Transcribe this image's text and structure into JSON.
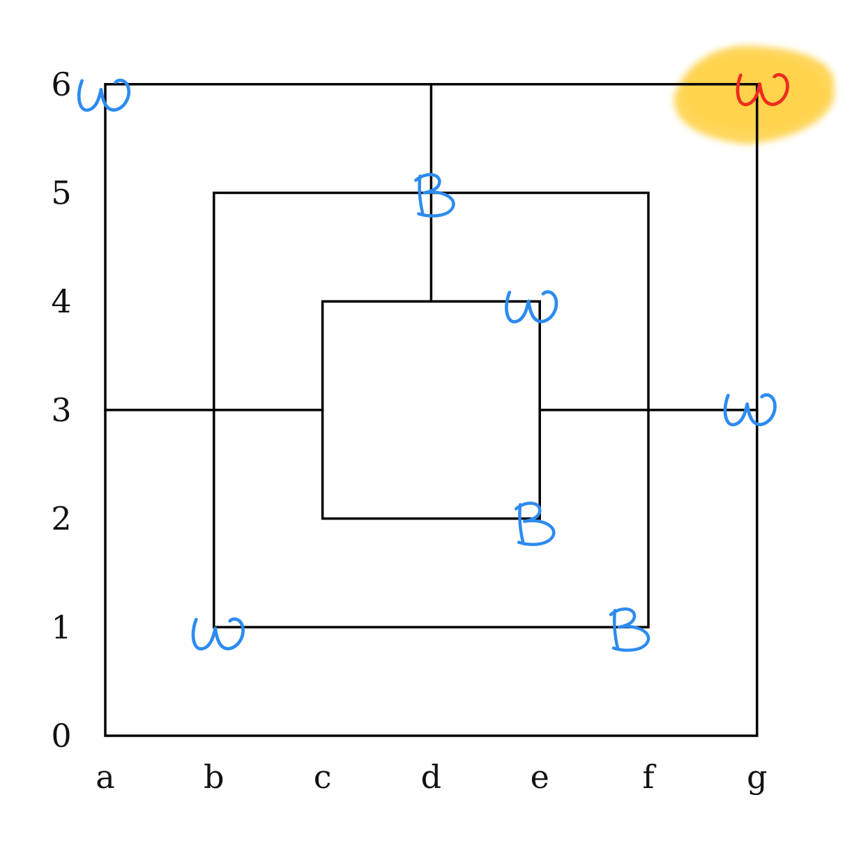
{
  "board": {
    "type": "nine-mens-morris",
    "files": [
      "a",
      "b",
      "c",
      "d",
      "e",
      "f",
      "g"
    ],
    "ranks": [
      "0",
      "1",
      "2",
      "3",
      "4",
      "5",
      "6"
    ],
    "squares": [
      {
        "name": "outer",
        "from": [
          "a",
          "0"
        ],
        "to": [
          "g",
          "6"
        ]
      },
      {
        "name": "middle",
        "from": [
          "b",
          "1"
        ],
        "to": [
          "f",
          "5"
        ]
      },
      {
        "name": "inner",
        "from": [
          "c",
          "2"
        ],
        "to": [
          "e",
          "4"
        ]
      }
    ],
    "connectors": [
      {
        "from": [
          "d",
          "6"
        ],
        "to": [
          "d",
          "4"
        ]
      },
      {
        "from": [
          "a",
          "3"
        ],
        "to": [
          "c",
          "3"
        ]
      },
      {
        "from": [
          "e",
          "3"
        ],
        "to": [
          "g",
          "3"
        ]
      }
    ]
  },
  "marks": [
    {
      "label": "W",
      "point": [
        "a",
        "6"
      ],
      "color": "blue"
    },
    {
      "label": "W",
      "point": [
        "g",
        "6"
      ],
      "color": "red",
      "highlighted": true
    },
    {
      "label": "B",
      "point": [
        "d",
        "5"
      ],
      "color": "blue"
    },
    {
      "label": "W",
      "point": [
        "e",
        "4"
      ],
      "color": "blue"
    },
    {
      "label": "W",
      "point": [
        "g",
        "3"
      ],
      "color": "blue"
    },
    {
      "label": "B",
      "point": [
        "e",
        "2"
      ],
      "color": "blue"
    },
    {
      "label": "W",
      "point": [
        "b",
        "1"
      ],
      "color": "blue"
    },
    {
      "label": "B",
      "point": [
        "f",
        "1"
      ],
      "color": "blue"
    }
  ],
  "colors": {
    "line": "#000000",
    "label": "#111111",
    "blue_ink": "#2d8bf0",
    "red_ink": "#ee2b1f",
    "highlight": "#ffd24a"
  }
}
